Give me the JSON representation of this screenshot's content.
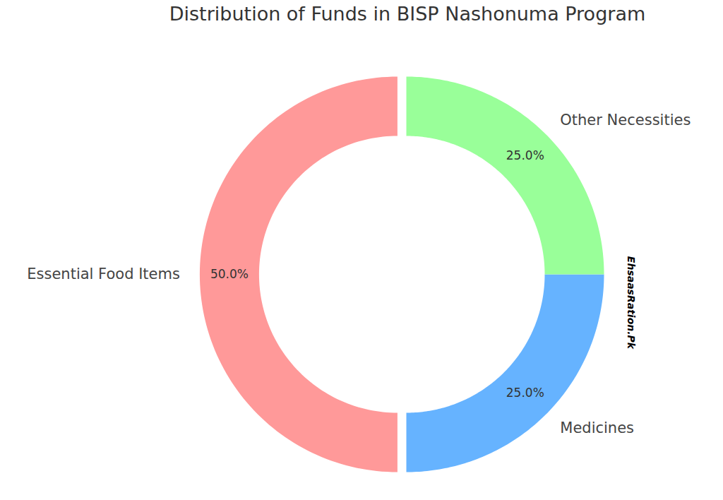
{
  "chart_data": {
    "type": "pie",
    "title": "Distribution of Funds in BISP Nashonuma Program",
    "categories": [
      "Essential Food Items",
      "Medicines",
      "Other Necessities"
    ],
    "values": [
      50,
      25,
      25
    ],
    "value_labels": [
      "50.0%",
      "25.0%",
      "25.0%"
    ],
    "colors": [
      "#ff9999",
      "#66b3ff",
      "#99ff99"
    ],
    "data_labels": true,
    "annotations": [
      "EhsaasRation.Pk"
    ]
  }
}
